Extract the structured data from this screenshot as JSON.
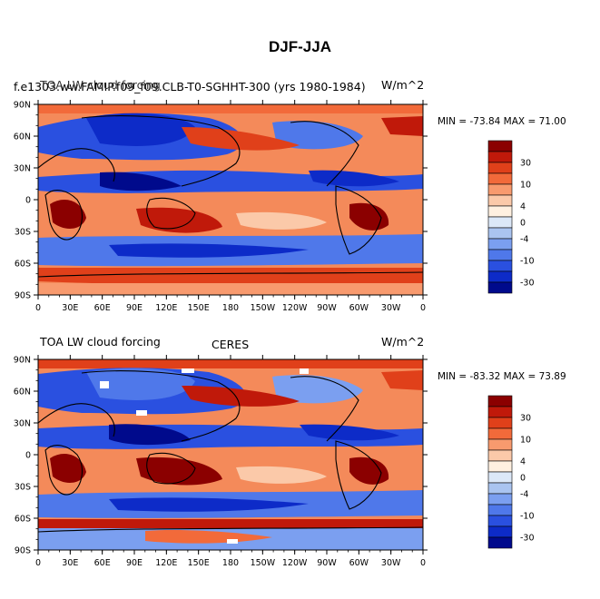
{
  "title": "DJF-JJA",
  "panels": [
    {
      "left_title": "f.e1303.ww.FAMIP.f09_f09.CLB-T0-SGHHT-300 (yrs 1980-1984)",
      "overlay_title": "TOA LW cloud forcing",
      "center_title": "",
      "right_title": "W/m^2",
      "min_max": "MIN = -73.84  MAX =  71.00"
    },
    {
      "left_title": "TOA LW cloud forcing",
      "overlay_title": "",
      "center_title": "CERES",
      "right_title": "W/m^2",
      "min_max": "MIN = -83.32  MAX =  73.89"
    }
  ],
  "lat_labels": [
    "90N",
    "60N",
    "30N",
    "0",
    "30S",
    "60S",
    "90S"
  ],
  "lon_labels": [
    "0",
    "30E",
    "60E",
    "90E",
    "120E",
    "150E",
    "180",
    "150W",
    "120W",
    "90W",
    "60W",
    "30W",
    "0"
  ],
  "colorbar": {
    "labels": [
      "30",
      "10",
      "4",
      "0",
      "-4",
      "-10",
      "-30"
    ],
    "colors": [
      "#8b0000",
      "#c0190a",
      "#e0401a",
      "#f26a3a",
      "#f89a6e",
      "#fbc9a9",
      "#fff0e0",
      "#dce8f8",
      "#aac4f0",
      "#7b9ff0",
      "#4f78ea",
      "#2a50e0",
      "#0d2bc8",
      "#000a8c"
    ]
  }
}
